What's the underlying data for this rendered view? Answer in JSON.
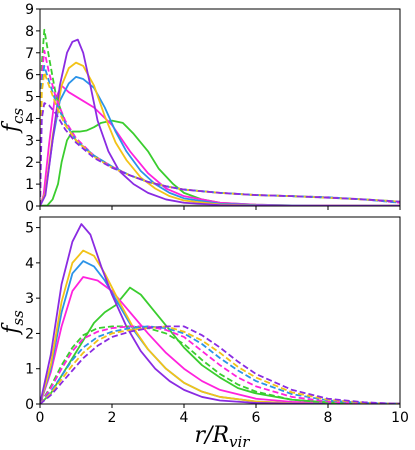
{
  "figure": {
    "xlabel": "r/R_vir",
    "xlabel_main": "r/R",
    "xlabel_sub": "vir"
  },
  "colors": {
    "purple": "#8a2be2",
    "gold": "#f2c318",
    "blue": "#2b93e8",
    "magenta": "#ff22dd",
    "green": "#3acd2e",
    "gray": "#999999"
  },
  "chart_data": [
    {
      "type": "line",
      "ylabel": "f_cs",
      "ylabel_main": "f",
      "ylabel_sub": "cs",
      "xlim": [
        0,
        10
      ],
      "ylim": [
        0,
        9
      ],
      "xticks": [
        "0",
        "2",
        "4",
        "6",
        "8",
        "10"
      ],
      "yticks": [
        "0",
        "1",
        "2",
        "3",
        "4",
        "5",
        "6",
        "7",
        "8",
        "9"
      ],
      "grid": false,
      "legend": "none",
      "series": [
        {
          "color": "gray",
          "style": "solid",
          "x": [
            0,
            10
          ],
          "y": [
            0.02,
            0.02
          ]
        },
        {
          "color": "green",
          "style": "solid",
          "x": [
            0,
            0.2,
            0.35,
            0.5,
            0.6,
            0.75,
            0.9,
            1.1,
            1.3,
            1.5,
            1.7,
            2.0,
            2.3,
            2.6,
            3.0,
            3.3,
            3.7,
            4.0,
            4.5,
            5,
            6,
            7,
            8,
            9,
            10
          ],
          "y": [
            0,
            0.02,
            0.3,
            1.0,
            2.0,
            3.0,
            3.4,
            3.4,
            3.45,
            3.6,
            3.8,
            3.9,
            3.8,
            3.3,
            2.5,
            1.7,
            1.0,
            0.6,
            0.3,
            0.15,
            0.06,
            0.03,
            0.02,
            0.01,
            0.01
          ]
        },
        {
          "color": "magenta",
          "style": "solid",
          "x": [
            0,
            0.1,
            0.25,
            0.4,
            0.6,
            0.8,
            1.0,
            1.2,
            1.5,
            2.0,
            2.5,
            3.0,
            3.5,
            4.0,
            5,
            6,
            7,
            8,
            10
          ],
          "y": [
            0,
            0.5,
            2.8,
            4.8,
            5.5,
            5.2,
            5.0,
            4.8,
            4.5,
            3.7,
            2.5,
            1.5,
            0.8,
            0.45,
            0.15,
            0.06,
            0.03,
            0.02,
            0.01
          ]
        },
        {
          "color": "blue",
          "style": "solid",
          "x": [
            0,
            0.15,
            0.35,
            0.55,
            0.8,
            1.0,
            1.2,
            1.5,
            1.8,
            2.1,
            2.4,
            2.8,
            3.2,
            3.6,
            4.0,
            5,
            6,
            8,
            10
          ],
          "y": [
            0,
            0.6,
            3.0,
            4.8,
            5.6,
            5.9,
            5.8,
            5.4,
            4.5,
            3.4,
            2.5,
            1.6,
            1.0,
            0.6,
            0.35,
            0.1,
            0.04,
            0.01,
            0.01
          ]
        },
        {
          "color": "gold",
          "style": "solid",
          "x": [
            0,
            0.15,
            0.35,
            0.6,
            0.8,
            1.0,
            1.2,
            1.5,
            1.8,
            2.1,
            2.4,
            2.8,
            3.2,
            3.6,
            4.0,
            5,
            6,
            8,
            10
          ],
          "y": [
            0,
            0.6,
            3.2,
            5.5,
            6.3,
            6.55,
            6.4,
            5.5,
            4.1,
            2.9,
            2.1,
            1.3,
            0.8,
            0.45,
            0.25,
            0.07,
            0.02,
            0.01,
            0.01
          ]
        },
        {
          "color": "purple",
          "style": "solid",
          "x": [
            0,
            0.15,
            0.35,
            0.55,
            0.75,
            0.9,
            1.05,
            1.2,
            1.4,
            1.6,
            1.9,
            2.2,
            2.6,
            3.0,
            3.5,
            4.0,
            5,
            6,
            8,
            10
          ],
          "y": [
            0,
            0.5,
            3.0,
            5.5,
            7.0,
            7.5,
            7.6,
            7.0,
            5.5,
            3.9,
            2.5,
            1.6,
            1.0,
            0.6,
            0.3,
            0.15,
            0.04,
            0.01,
            0.01,
            0.01
          ]
        },
        {
          "color": "green",
          "style": "dashed",
          "x": [
            0,
            0.05,
            0.12,
            0.25,
            0.45,
            0.7,
            1.0,
            1.5,
            2.0,
            2.5,
            3.0,
            3.5,
            4,
            5,
            6,
            7,
            8,
            9,
            10
          ],
          "y": [
            0,
            6.5,
            8.05,
            6.8,
            5.0,
            3.8,
            3.0,
            2.3,
            1.8,
            1.4,
            1.1,
            0.9,
            0.75,
            0.6,
            0.5,
            0.45,
            0.38,
            0.3,
            0.2
          ]
        },
        {
          "color": "magenta",
          "style": "dashed",
          "x": [
            0,
            0.05,
            0.12,
            0.25,
            0.45,
            0.7,
            1.0,
            1.5,
            2.0,
            2.5,
            3.0,
            3.5,
            4,
            5,
            6,
            7,
            8,
            9,
            10
          ],
          "y": [
            0,
            6.0,
            7.1,
            6.1,
            4.9,
            3.9,
            3.1,
            2.3,
            1.8,
            1.4,
            1.1,
            0.9,
            0.75,
            0.6,
            0.5,
            0.45,
            0.4,
            0.3,
            0.15
          ]
        },
        {
          "color": "blue",
          "style": "dashed",
          "x": [
            0,
            0.05,
            0.12,
            0.25,
            0.45,
            0.7,
            1.0,
            1.5,
            2.0,
            2.5,
            3.0,
            3.5,
            4,
            5,
            6,
            7,
            8,
            9,
            10
          ],
          "y": [
            0,
            5.6,
            6.4,
            5.7,
            4.7,
            3.8,
            3.0,
            2.3,
            1.8,
            1.4,
            1.1,
            0.9,
            0.75,
            0.6,
            0.5,
            0.45,
            0.4,
            0.3,
            0.15
          ]
        },
        {
          "color": "gold",
          "style": "dashed",
          "x": [
            0,
            0.05,
            0.12,
            0.25,
            0.45,
            0.7,
            1.0,
            1.5,
            2.0,
            2.5,
            3.0,
            3.5,
            4,
            5,
            6,
            7,
            8,
            9,
            10
          ],
          "y": [
            0,
            5.2,
            6.1,
            5.5,
            4.6,
            3.7,
            3.0,
            2.25,
            1.75,
            1.4,
            1.1,
            0.9,
            0.75,
            0.6,
            0.5,
            0.45,
            0.38,
            0.3,
            0.2
          ]
        },
        {
          "color": "purple",
          "style": "dashed",
          "x": [
            0,
            0.05,
            0.12,
            0.25,
            0.45,
            0.7,
            1.0,
            1.5,
            2.0,
            2.5,
            3.0,
            3.5,
            4,
            5,
            6,
            7,
            8,
            9,
            10
          ],
          "y": [
            0,
            4.0,
            4.7,
            4.6,
            4.2,
            3.5,
            2.9,
            2.2,
            1.75,
            1.4,
            1.1,
            0.9,
            0.75,
            0.6,
            0.5,
            0.45,
            0.38,
            0.3,
            0.2
          ]
        }
      ]
    },
    {
      "type": "line",
      "ylabel": "f_ss",
      "ylabel_main": "f",
      "ylabel_sub": "ss",
      "xlim": [
        0,
        10
      ],
      "ylim": [
        0,
        5.3
      ],
      "xticks": [
        "0",
        "2",
        "4",
        "6",
        "8",
        "10"
      ],
      "yticks": [
        "0",
        "1",
        "2",
        "3",
        "4",
        "5"
      ],
      "grid": false,
      "legend": "none",
      "series": [
        {
          "color": "green",
          "style": "solid",
          "x": [
            0,
            0.3,
            0.6,
            0.9,
            1.2,
            1.5,
            1.8,
            2.1,
            2.5,
            2.8,
            3.2,
            3.6,
            4.0,
            4.5,
            5,
            5.5,
            6,
            7,
            8,
            9,
            10
          ],
          "y": [
            0,
            0.3,
            0.8,
            1.3,
            1.8,
            2.3,
            2.6,
            2.8,
            3.3,
            3.1,
            2.6,
            2.1,
            1.6,
            1.1,
            0.75,
            0.45,
            0.3,
            0.12,
            0.05,
            0.02,
            0.01
          ]
        },
        {
          "color": "magenta",
          "style": "solid",
          "x": [
            0,
            0.3,
            0.6,
            0.9,
            1.2,
            1.6,
            2.0,
            2.5,
            3.0,
            3.5,
            4.0,
            4.5,
            5,
            6,
            7,
            8,
            10
          ],
          "y": [
            0,
            0.9,
            2.2,
            3.2,
            3.6,
            3.5,
            3.2,
            2.6,
            2.0,
            1.45,
            1.0,
            0.65,
            0.4,
            0.15,
            0.06,
            0.02,
            0.01
          ]
        },
        {
          "color": "blue",
          "style": "solid",
          "x": [
            0,
            0.3,
            0.6,
            0.9,
            1.2,
            1.5,
            1.8,
            2.2,
            2.6,
            3.0,
            3.5,
            4.0,
            4.5,
            5,
            6,
            7,
            8,
            10
          ],
          "y": [
            0,
            1.0,
            2.6,
            3.7,
            4.05,
            3.9,
            3.5,
            2.8,
            2.1,
            1.55,
            1.0,
            0.6,
            0.35,
            0.2,
            0.07,
            0.02,
            0.01,
            0.01
          ]
        },
        {
          "color": "gold",
          "style": "solid",
          "x": [
            0,
            0.3,
            0.6,
            0.9,
            1.2,
            1.5,
            1.8,
            2.2,
            2.6,
            3.0,
            3.5,
            4.0,
            4.5,
            5,
            6,
            7,
            8,
            10
          ],
          "y": [
            0,
            1.1,
            2.9,
            4.0,
            4.35,
            4.2,
            3.7,
            2.9,
            2.15,
            1.55,
            1.0,
            0.6,
            0.35,
            0.2,
            0.07,
            0.02,
            0.01,
            0.01
          ]
        },
        {
          "color": "purple",
          "style": "solid",
          "x": [
            0,
            0.3,
            0.6,
            0.9,
            1.15,
            1.4,
            1.7,
            2.0,
            2.4,
            2.8,
            3.2,
            3.6,
            4.0,
            4.5,
            5,
            6,
            7,
            8,
            10
          ],
          "y": [
            0,
            1.4,
            3.4,
            4.6,
            5.1,
            4.8,
            3.9,
            3.1,
            2.2,
            1.5,
            1.0,
            0.65,
            0.4,
            0.2,
            0.1,
            0.03,
            0.01,
            0.01,
            0.01
          ]
        },
        {
          "color": "green",
          "style": "dashed",
          "x": [
            0,
            0.3,
            0.6,
            0.9,
            1.2,
            1.6,
            2.0,
            2.5,
            3.0,
            3.5,
            4.0,
            4.5,
            5,
            5.5,
            6,
            7,
            8,
            9,
            10
          ],
          "y": [
            0,
            0.5,
            1.1,
            1.6,
            1.95,
            2.15,
            2.2,
            2.2,
            2.15,
            2.0,
            1.7,
            1.25,
            0.85,
            0.55,
            0.35,
            0.12,
            0.04,
            0.01,
            0.0
          ]
        },
        {
          "color": "magenta",
          "style": "dashed",
          "x": [
            0,
            0.3,
            0.6,
            0.9,
            1.2,
            1.6,
            2.0,
            2.5,
            3.0,
            3.5,
            4.0,
            4.5,
            5,
            5.5,
            6,
            7,
            8,
            9,
            10
          ],
          "y": [
            0,
            0.45,
            1.0,
            1.5,
            1.85,
            2.05,
            2.15,
            2.2,
            2.2,
            2.1,
            1.9,
            1.5,
            1.1,
            0.75,
            0.5,
            0.2,
            0.07,
            0.02,
            0.0
          ]
        },
        {
          "color": "blue",
          "style": "dashed",
          "x": [
            0,
            0.3,
            0.6,
            0.9,
            1.2,
            1.6,
            2.0,
            2.5,
            3.0,
            3.5,
            4.0,
            4.5,
            5,
            5.5,
            6,
            7,
            8,
            9,
            10
          ],
          "y": [
            0,
            0.35,
            0.8,
            1.25,
            1.6,
            1.9,
            2.05,
            2.15,
            2.2,
            2.15,
            2.0,
            1.7,
            1.3,
            0.95,
            0.65,
            0.28,
            0.1,
            0.03,
            0.0
          ]
        },
        {
          "color": "gold",
          "style": "dashed",
          "x": [
            0,
            0.3,
            0.6,
            0.9,
            1.2,
            1.6,
            2.0,
            2.5,
            3.0,
            3.5,
            4.0,
            4.5,
            5,
            5.5,
            6,
            7,
            8,
            9,
            10
          ],
          "y": [
            0,
            0.3,
            0.7,
            1.1,
            1.45,
            1.8,
            2.0,
            2.1,
            2.15,
            2.2,
            2.05,
            1.8,
            1.45,
            1.05,
            0.75,
            0.33,
            0.12,
            0.04,
            0.0
          ]
        },
        {
          "color": "purple",
          "style": "dashed",
          "x": [
            0,
            0.3,
            0.6,
            0.9,
            1.2,
            1.6,
            2.0,
            2.5,
            3.0,
            3.5,
            4.0,
            4.5,
            5,
            5.5,
            6,
            7,
            8,
            9,
            10
          ],
          "y": [
            0,
            0.25,
            0.6,
            0.95,
            1.3,
            1.65,
            1.9,
            2.05,
            2.15,
            2.2,
            2.2,
            1.95,
            1.6,
            1.2,
            0.85,
            0.4,
            0.15,
            0.05,
            0.0
          ]
        }
      ]
    }
  ]
}
